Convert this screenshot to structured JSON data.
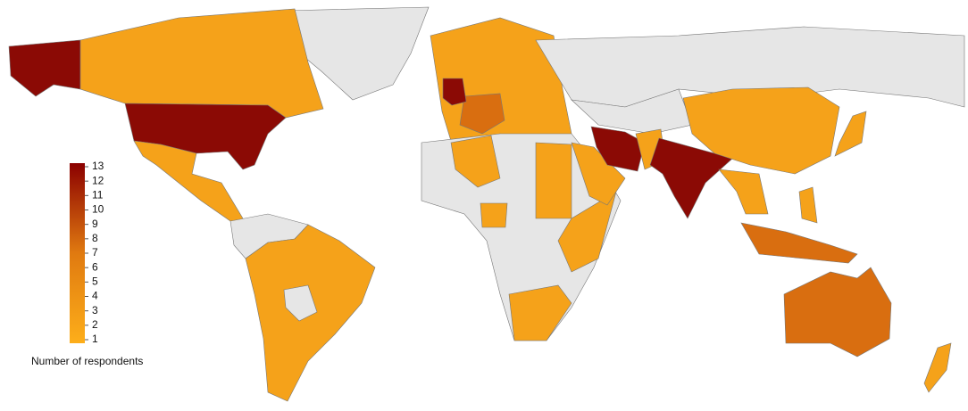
{
  "legend": {
    "title": "Number of respondents",
    "ticks": [
      1,
      2,
      3,
      4,
      5,
      6,
      7,
      8,
      9,
      10,
      11,
      12,
      13
    ],
    "range": [
      1,
      13
    ],
    "colors": [
      "#fdae1a",
      "#e07a10",
      "#8b0000"
    ]
  }
}
